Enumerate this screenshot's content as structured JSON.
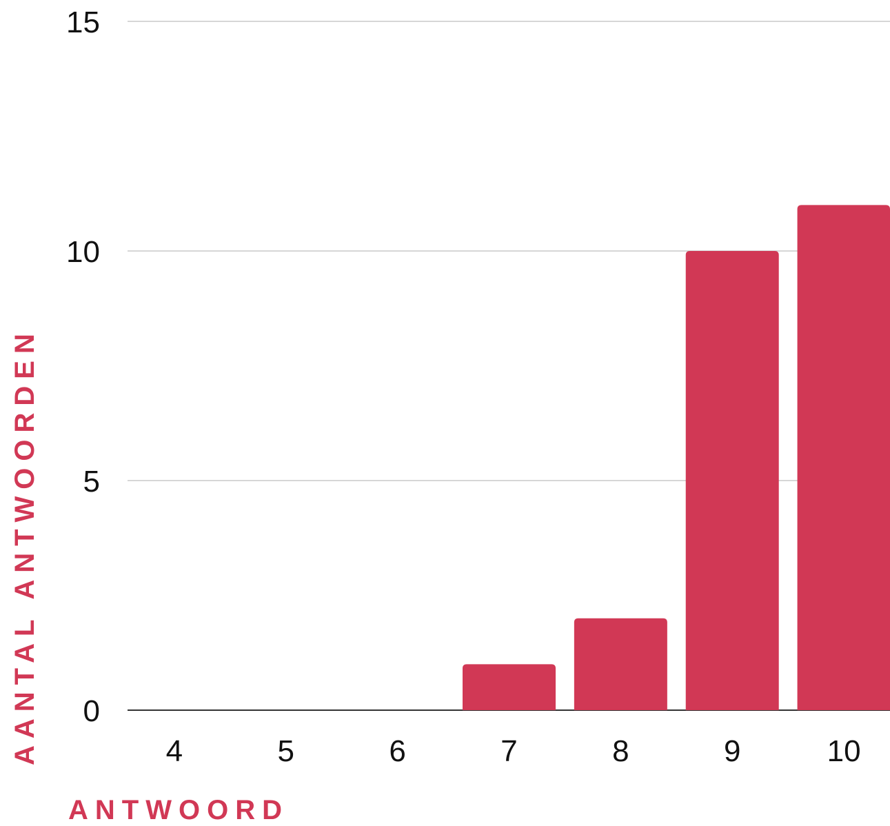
{
  "chart_data": {
    "type": "bar",
    "categories": [
      "4",
      "5",
      "6",
      "7",
      "8",
      "9",
      "10"
    ],
    "values": [
      0,
      0,
      0,
      1,
      2,
      10,
      11
    ],
    "title": "",
    "xlabel": "ANTWOORD",
    "ylabel": "AANTAL ANTWOORDEN",
    "ylim": [
      0,
      15
    ],
    "yticks": [
      0,
      5,
      10,
      15
    ],
    "grid": true,
    "legend": "none",
    "colors": {
      "bar": "#D13855",
      "axis_title": "#D13855",
      "gridline": "#C8C8C8",
      "baseline": "#333333",
      "tick_text": "#111111"
    }
  }
}
